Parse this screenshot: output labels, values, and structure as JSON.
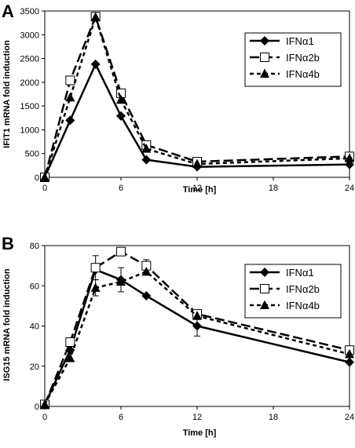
{
  "chart_data": [
    {
      "panel": "A",
      "type": "line",
      "xlabel": "Time [h]",
      "ylabel": "IFIT1 mRNA fold induction",
      "xlim": [
        0,
        24
      ],
      "ylim": [
        0,
        3500
      ],
      "xticks": [
        0,
        6,
        12,
        18,
        24
      ],
      "yticks": [
        0,
        500,
        1000,
        1500,
        2000,
        2500,
        3000,
        3500
      ],
      "grid": false,
      "legend": "top-right",
      "series": [
        {
          "name": "IFNα1",
          "marker": "diamond",
          "dash": "solid",
          "x": [
            0,
            2,
            4,
            6,
            8,
            12,
            24
          ],
          "y": [
            0,
            1200,
            2380,
            1290,
            370,
            220,
            270
          ],
          "err": [
            0,
            0,
            0,
            0,
            0,
            0,
            0
          ]
        },
        {
          "name": "IFNα2b",
          "marker": "square-open",
          "dash": "longdash",
          "x": [
            0,
            2,
            4,
            6,
            8,
            12,
            24
          ],
          "y": [
            0,
            2040,
            3380,
            1770,
            680,
            330,
            440
          ],
          "err": [
            0,
            0,
            0,
            0,
            0,
            0,
            0
          ]
        },
        {
          "name": "IFNα4b",
          "marker": "triangle",
          "dash": "shortdash",
          "x": [
            0,
            2,
            4,
            6,
            8,
            12,
            24
          ],
          "y": [
            0,
            1680,
            3370,
            1630,
            600,
            280,
            400
          ],
          "err": [
            0,
            0,
            0,
            0,
            0,
            0,
            0
          ]
        }
      ]
    },
    {
      "panel": "B",
      "type": "line",
      "xlabel": "Time [h]",
      "ylabel": "ISG15 mRNA fold induction",
      "xlim": [
        0,
        24
      ],
      "ylim": [
        0,
        80
      ],
      "xticks": [
        0,
        6,
        12,
        18,
        24
      ],
      "yticks": [
        0,
        20,
        40,
        60,
        80
      ],
      "grid": false,
      "legend": "top-right",
      "series": [
        {
          "name": "IFNα1",
          "marker": "diamond",
          "dash": "solid",
          "x": [
            0,
            2,
            4,
            6,
            8,
            12,
            24
          ],
          "y": [
            1,
            28,
            68,
            63,
            55,
            40,
            22
          ],
          "err": [
            0,
            0,
            0,
            6,
            0,
            5,
            0
          ]
        },
        {
          "name": "IFNα2b",
          "marker": "square-open",
          "dash": "longdash",
          "x": [
            0,
            2,
            4,
            6,
            8,
            12,
            24
          ],
          "y": [
            1,
            32,
            69,
            77,
            70,
            46,
            28
          ],
          "err": [
            0,
            0,
            6,
            0,
            3,
            2,
            0
          ]
        },
        {
          "name": "IFNα4b",
          "marker": "triangle",
          "dash": "shortdash",
          "x": [
            0,
            2,
            4,
            6,
            8,
            12,
            24
          ],
          "y": [
            1,
            24,
            59,
            62,
            67,
            45,
            26
          ],
          "err": [
            0,
            0,
            4,
            0,
            0,
            0,
            0
          ]
        }
      ]
    }
  ]
}
